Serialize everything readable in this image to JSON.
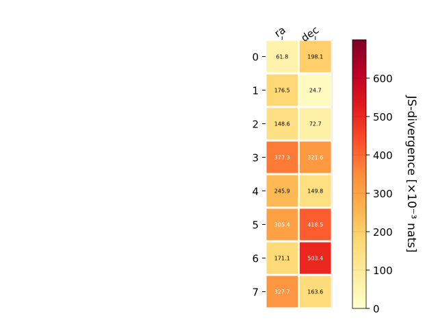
{
  "chart_data": {
    "type": "heatmap",
    "columns": [
      "ra",
      "dec"
    ],
    "rows": [
      "0",
      "1",
      "2",
      "3",
      "4",
      "5",
      "6",
      "7"
    ],
    "values": [
      [
        61.8,
        198.1
      ],
      [
        176.5,
        24.7
      ],
      [
        148.6,
        72.7
      ],
      [
        377.3,
        321.6
      ],
      [
        245.9,
        149.8
      ],
      [
        305.4,
        418.5
      ],
      [
        171.1,
        503.4
      ],
      [
        327.7,
        163.6
      ]
    ],
    "cell_labels": [
      [
        "61.8",
        "198.1"
      ],
      [
        "176.5",
        "24.7"
      ],
      [
        "148.6",
        "72.7"
      ],
      [
        "377.3",
        "321.6"
      ],
      [
        "245.9",
        "149.8"
      ],
      [
        "305.4",
        "418.5"
      ],
      [
        "171.1",
        "503.4"
      ],
      [
        "327.7",
        "163.6"
      ]
    ],
    "colorbar": {
      "colormap": "YlOrRd",
      "range": [
        0,
        700
      ],
      "ticks": [
        0,
        100,
        200,
        300,
        400,
        500,
        600
      ],
      "tick_labels": [
        "0",
        "100",
        "200",
        "300",
        "400",
        "500",
        "600"
      ],
      "label": "JS-divergence [×10⁻³ nats]"
    },
    "grid": false
  }
}
